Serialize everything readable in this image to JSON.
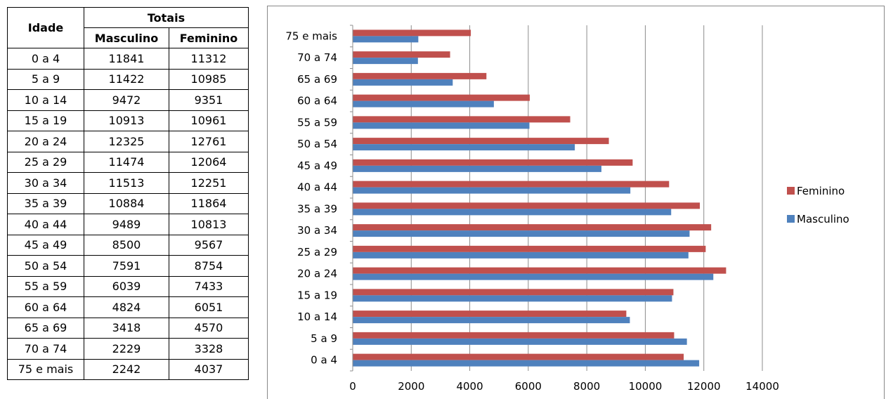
{
  "table": {
    "header_age": "Idade",
    "header_group": "Totais",
    "header_male": "Masculino",
    "header_female": "Feminino",
    "rows": [
      {
        "age": "0 a 4",
        "male": "11841",
        "female": "11312"
      },
      {
        "age": "5 a 9",
        "male": "11422",
        "female": "10985"
      },
      {
        "age": "10 a 14",
        "male": "9472",
        "female": "9351"
      },
      {
        "age": "15 a 19",
        "male": "10913",
        "female": "10961"
      },
      {
        "age": "20 a 24",
        "male": "12325",
        "female": "12761"
      },
      {
        "age": "25 a 29",
        "male": "11474",
        "female": "12064"
      },
      {
        "age": "30 a 34",
        "male": "11513",
        "female": "12251"
      },
      {
        "age": "35 a 39",
        "male": "10884",
        "female": "11864"
      },
      {
        "age": "40 a 44",
        "male": "9489",
        "female": "10813"
      },
      {
        "age": "45 a 49",
        "male": "8500",
        "female": "9567"
      },
      {
        "age": "50 a 54",
        "male": "7591",
        "female": "8754"
      },
      {
        "age": "55 a 59",
        "male": "6039",
        "female": "7433"
      },
      {
        "age": "60 a 64",
        "male": "4824",
        "female": "6051"
      },
      {
        "age": "65 a 69",
        "male": "3418",
        "female": "4570"
      },
      {
        "age": "70 a 74",
        "male": "2229",
        "female": "3328"
      },
      {
        "age": "75 e mais",
        "male": "2242",
        "female": "4037"
      }
    ]
  },
  "chart_data": {
    "type": "bar",
    "orientation": "horizontal",
    "categories": [
      "0 a 4",
      "5 a 9",
      "10 a 14",
      "15 a 19",
      "20 a 24",
      "25 a 29",
      "30 a 34",
      "35 a 39",
      "40 a 44",
      "45 a 49",
      "50 a 54",
      "55 a 59",
      "60 a 64",
      "65 a 69",
      "70 a 74",
      "75 e mais"
    ],
    "series": [
      {
        "name": "Masculino",
        "color": "#4F81BD",
        "values": [
          11841,
          11422,
          9472,
          10913,
          12325,
          11474,
          11513,
          10884,
          9489,
          8500,
          7591,
          6039,
          4824,
          3418,
          2229,
          2242
        ]
      },
      {
        "name": "Feminino",
        "color": "#C0504D",
        "values": [
          11312,
          10985,
          9351,
          10961,
          12761,
          12064,
          12251,
          11864,
          10813,
          9567,
          8754,
          7433,
          6051,
          4570,
          3328,
          4037
        ]
      }
    ],
    "xlim": [
      0,
      14000
    ],
    "xticks": [
      "0",
      "2000",
      "4000",
      "6000",
      "8000",
      "10000",
      "12000",
      "14000"
    ],
    "grid": true,
    "legend_position": "right",
    "legend_order": [
      "Feminino",
      "Masculino"
    ],
    "title": "",
    "xlabel": "",
    "ylabel": ""
  }
}
